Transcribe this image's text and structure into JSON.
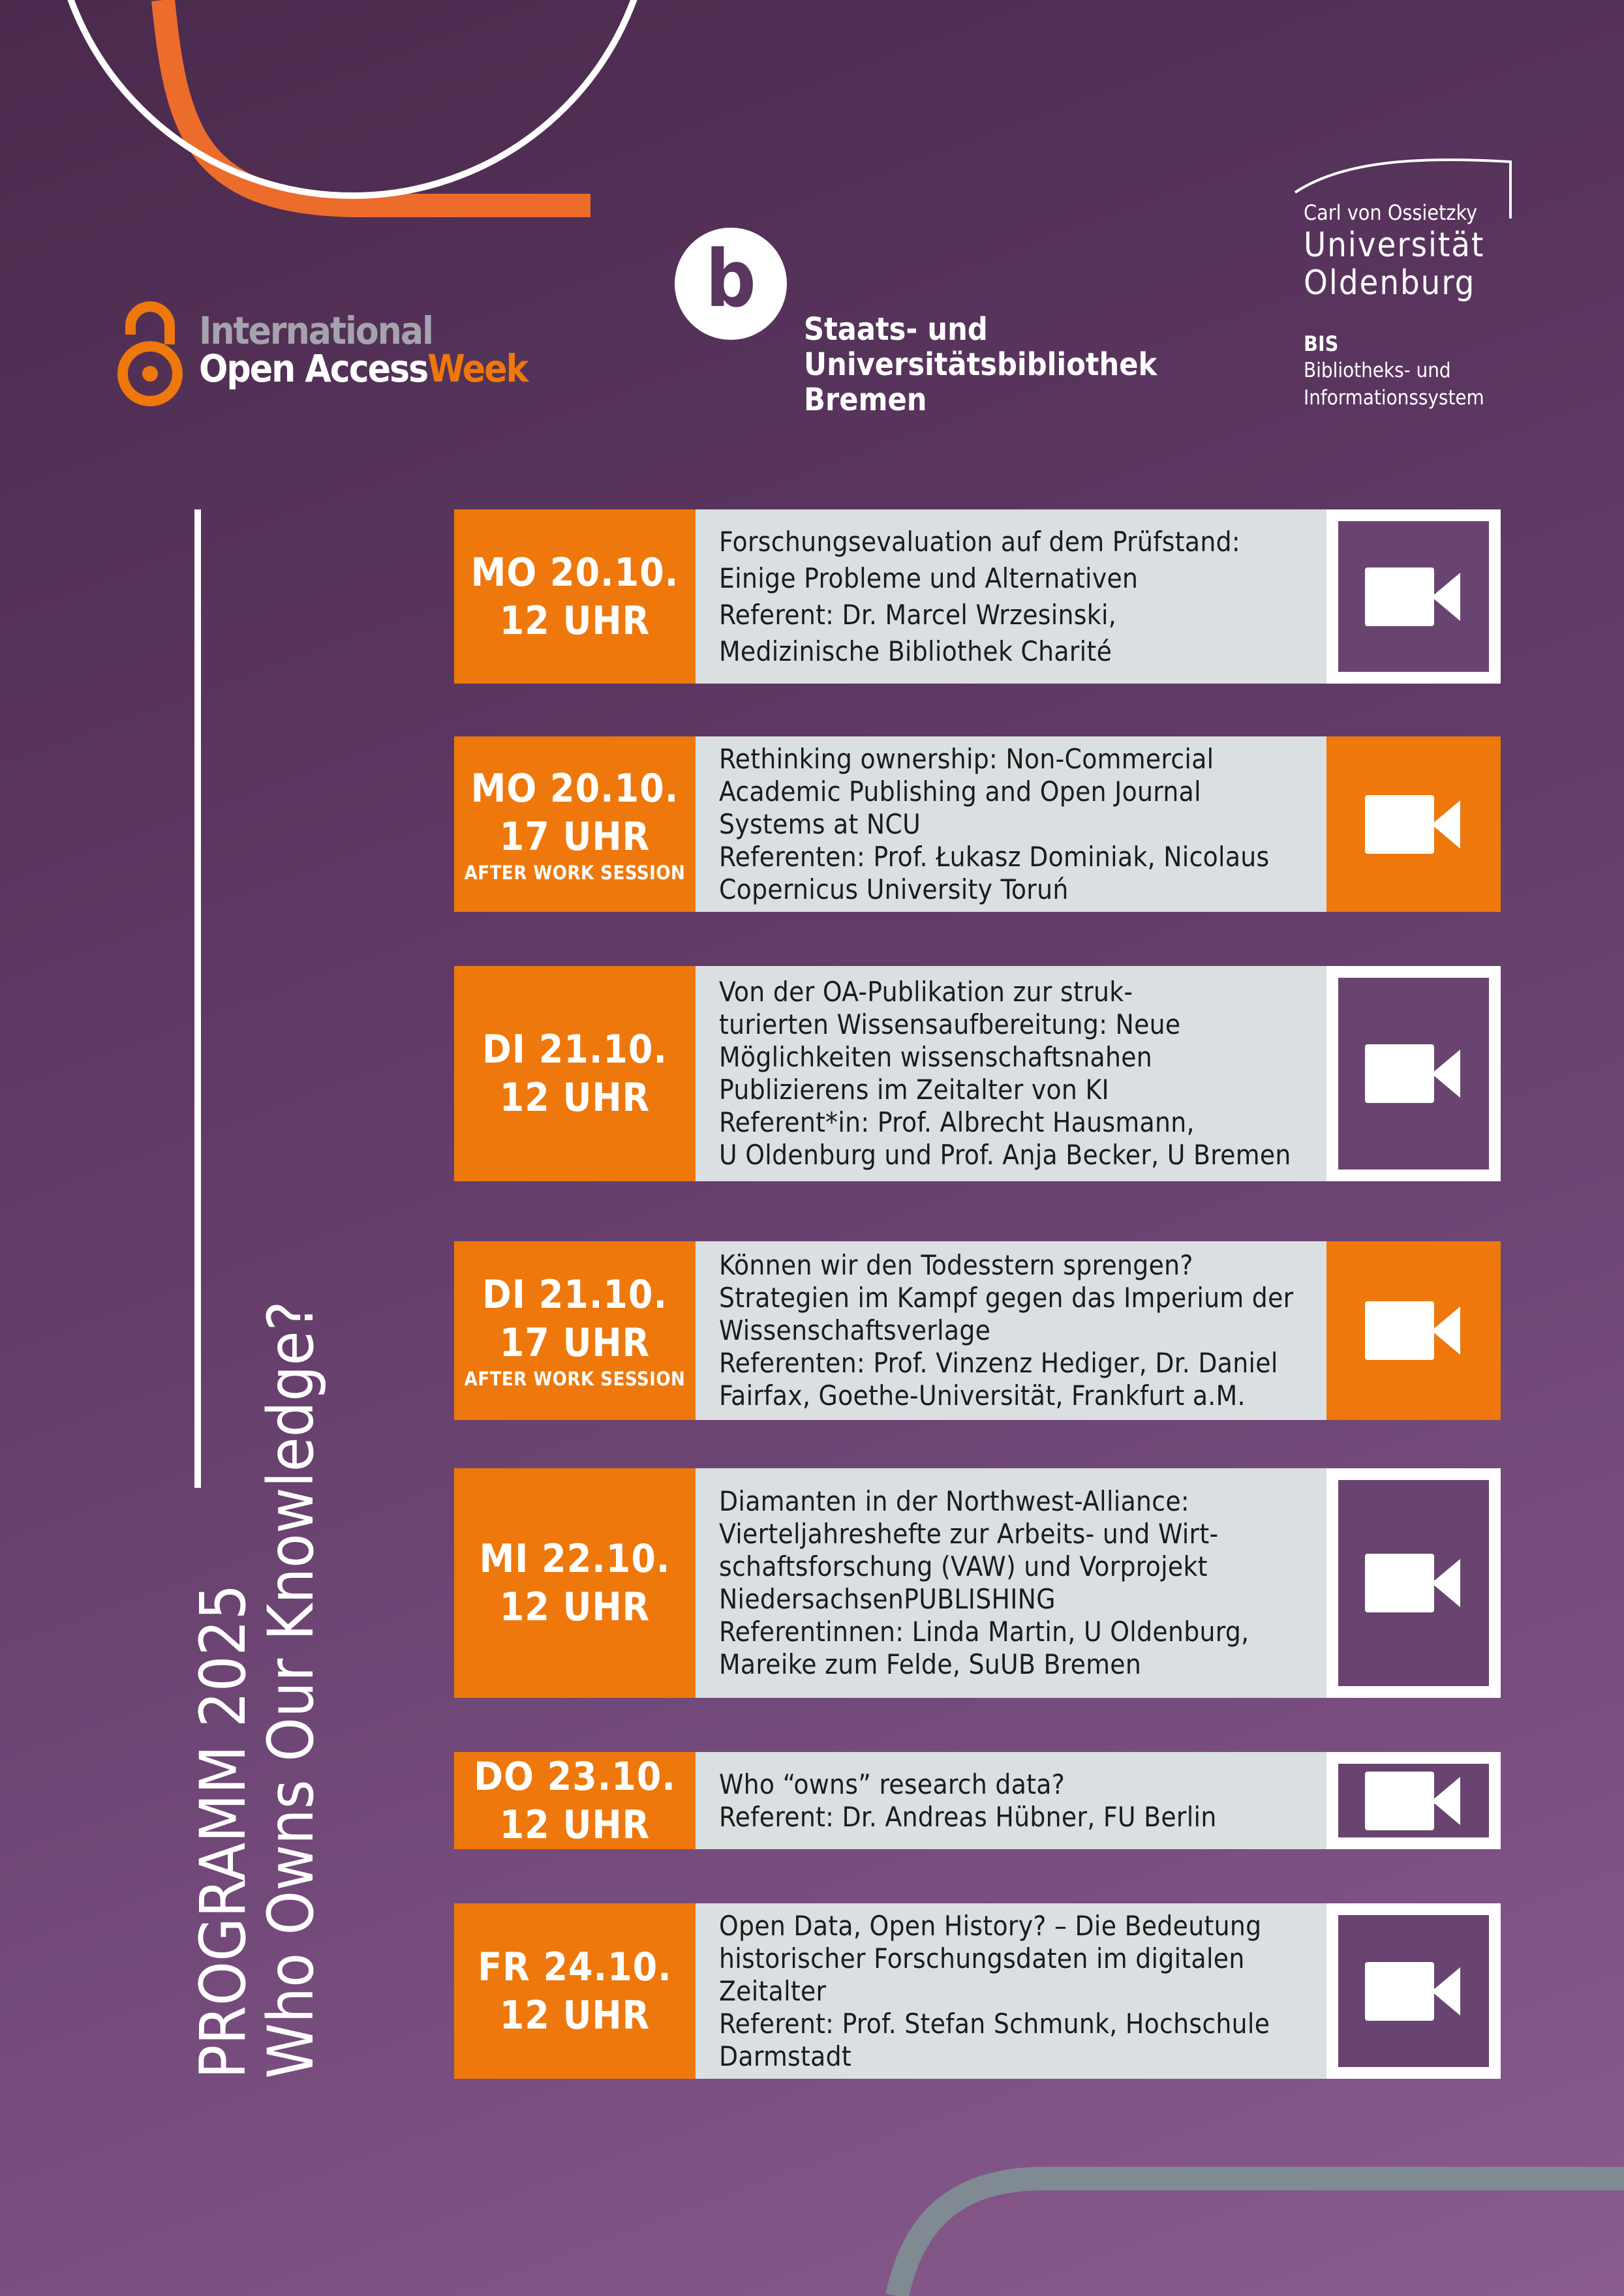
{
  "colors": {
    "accent": "#ee780b",
    "panel": "#dadfe1",
    "purple": "#6a4470"
  },
  "logos": {
    "oaw": {
      "line1": "International",
      "line2a": "Open Access",
      "line2b": "Week",
      "icon": "open-access-lock-icon"
    },
    "suub": {
      "letter": "b",
      "lines": [
        "Staats- und",
        "Universitätsbibliothek",
        "Bremen"
      ]
    },
    "uol": {
      "line1": "Carl von Ossietzky",
      "line2": "Universität",
      "line3": "Oldenburg",
      "bis": "BIS",
      "bis1": "Bibliotheks- und",
      "bis2": "Informationssystem"
    }
  },
  "side": {
    "title": "PROGRAMM 2025",
    "subtitle": "Who Owns Our Knowledge?"
  },
  "events": [
    {
      "day": "MO 20.10.",
      "time": "12 UHR",
      "note": "",
      "icon_style": "purple",
      "lines": [
        "Forschungsevaluation auf dem Prüfstand:",
        "Einige Probleme und Alternativen",
        "Referent: Dr. Marcel Wrzesinski,",
        "Medizinische Bibliothek Charité"
      ]
    },
    {
      "day": "MO 20.10.",
      "time": "17 UHR",
      "note": "AFTER WORK SESSION",
      "icon_style": "orange",
      "lines": [
        "Rethinking ownership: Non-Commercial",
        "Academic Publishing and Open Journal",
        "Systems at NCU",
        "Referenten: Prof. Łukasz Dominiak, Nicolaus",
        "Copernicus University Toruń"
      ]
    },
    {
      "day": "DI 21.10.",
      "time": "12 UHR",
      "note": "",
      "icon_style": "purple",
      "lines": [
        "Von der OA-Publikation zur struk-",
        "turierten Wissensaufbereitung: Neue",
        "Möglichkeiten wissenschaftsnahen",
        "Publizierens im Zeitalter von KI",
        "Referent*in: Prof. Albrecht Hausmann,",
        "U Oldenburg und Prof. Anja Becker, U Bremen"
      ]
    },
    {
      "day": "DI 21.10.",
      "time": "17 UHR",
      "note": "AFTER WORK SESSION",
      "icon_style": "orange",
      "lines": [
        "Können wir den Todesstern sprengen?",
        "Strategien im Kampf gegen das Imperium der",
        "Wissenschaftsverlage",
        "Referenten: Prof. Vinzenz Hediger, Dr. Daniel",
        "Fairfax, Goethe-Universität, Frankfurt a.M."
      ]
    },
    {
      "day": "MI 22.10.",
      "time": "12 UHR",
      "note": "",
      "icon_style": "purple",
      "lines": [
        "Diamanten in der Northwest-Alliance:",
        "Vierteljahreshefte zur Arbeits- und Wirt-",
        "schaftsforschung (VAW) und Vorprojekt",
        "NiedersachsenPUBLISHING",
        "Referentinnen: Linda Martin, U Oldenburg,",
        "Mareike zum Felde, SuUB Bremen"
      ]
    },
    {
      "day": "DO 23.10.",
      "time": "12 UHR",
      "note": "",
      "icon_style": "purple",
      "lines": [
        "Who “owns” research data?",
        "Referent: Dr. Andreas Hübner, FU Berlin"
      ]
    },
    {
      "day": "FR 24.10.",
      "time": "12 UHR",
      "note": "",
      "icon_style": "purple",
      "lines": [
        "Open Data, Open History? – Die Bedeutung",
        "historischer Forschungsdaten im digitalen",
        "Zeitalter",
        "Referent: Prof. Stefan Schmunk, Hochschule",
        "Darmstadt"
      ]
    }
  ]
}
